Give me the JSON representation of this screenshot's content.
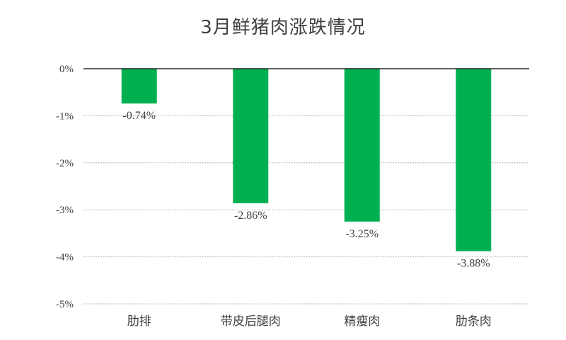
{
  "chart_data": {
    "type": "bar",
    "title": "3月鲜猪肉涨跌情况",
    "categories": [
      "肋排",
      "带皮后腿肉",
      "精瘦肉",
      "肋条肉"
    ],
    "values": [
      -0.74,
      -2.86,
      -3.25,
      -3.88
    ],
    "data_labels": [
      "-0.74%",
      "-2.86%",
      "-3.25%",
      "-3.88%"
    ],
    "xlabel": "",
    "ylabel": "",
    "ylim": [
      -5,
      0
    ],
    "yticks": [
      0,
      -1,
      -2,
      -3,
      -4,
      -5
    ],
    "ytick_labels": [
      "0%",
      "-1%",
      "-2%",
      "-3%",
      "-4%",
      "-5%"
    ],
    "bar_color": "#00b050",
    "grid": "dotted-horizontal",
    "legend": "none"
  }
}
